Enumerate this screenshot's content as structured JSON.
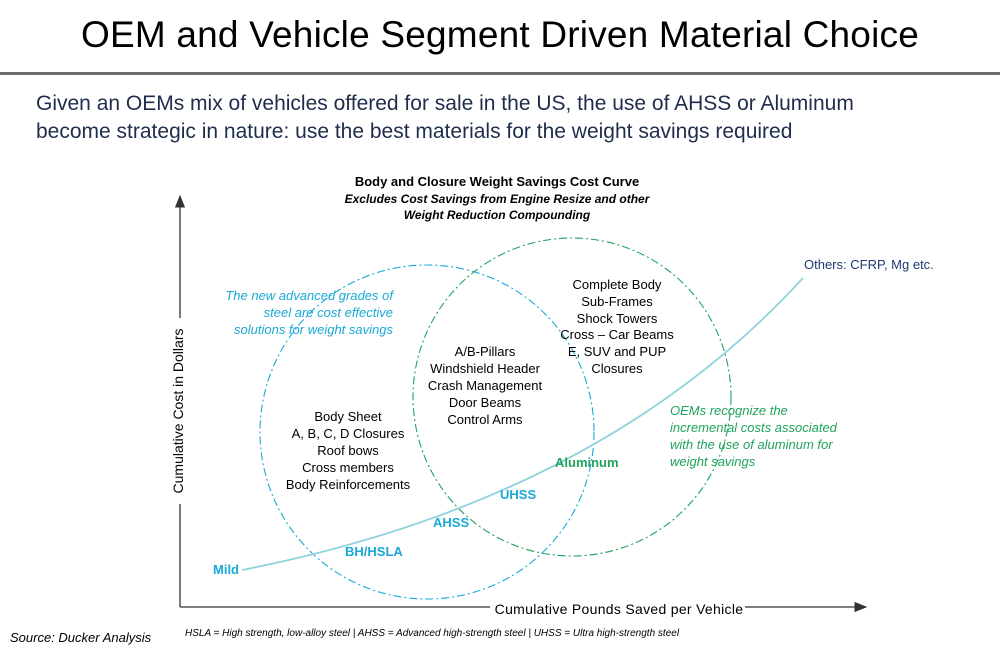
{
  "header": {
    "title": "OEM and Vehicle Segment Driven Material Choice",
    "subtitle_line1": "Given an OEMs mix of vehicles offered for sale in the US, the use of AHSS or Aluminum",
    "subtitle_line2": "become strategic in nature: use the best materials for the weight savings required"
  },
  "diagram": {
    "title": "Body and Closure Weight Savings Cost Curve",
    "subtitle_line1": "Excludes Cost Savings from Engine Resize and other",
    "subtitle_line2": "Weight Reduction Compounding",
    "y_axis_label": "Cumulative Cost in Dollars",
    "x_axis_label": "Cumulative Pounds Saved per Vehicle",
    "curve_points": [
      "Mild",
      "BH/HSLA",
      "AHSS",
      "UHSS",
      "Aluminum",
      "Others: CFRP, Mg etc."
    ],
    "steel_note": [
      "The new advanced grades of",
      "steel are cost effective",
      "solutions for weight savings"
    ],
    "aluminum_note": [
      "OEMs recognize the",
      "incremental costs associated",
      "with the use of aluminum for",
      "weight savings"
    ],
    "steel_parts": [
      "Body Sheet",
      "A, B, C, D Closures",
      "Roof bows",
      "Cross members",
      "Body Reinforcements"
    ],
    "overlap_parts": [
      "A/B-Pillars",
      "Windshield Header",
      "Crash Management",
      "Door Beams",
      "Control Arms"
    ],
    "aluminum_parts": [
      "Complete Body",
      "Sub-Frames",
      "Shock Towers",
      "Cross – Car Beams",
      "E, SUV and PUP",
      "Closures"
    ]
  },
  "colors": {
    "steel_blue": "#1aa9d6",
    "aluminum_green": "#1fa35c",
    "curve": "#8fd3dc",
    "axis": "#333333",
    "subtitle_navy": "#1f2d4d"
  },
  "footer": {
    "source": "Source: Ducker Analysis",
    "abbreviations": "HSLA = High strength, low-alloy steel | AHSS = Advanced high-strength steel | UHSS = Ultra high-strength steel"
  }
}
